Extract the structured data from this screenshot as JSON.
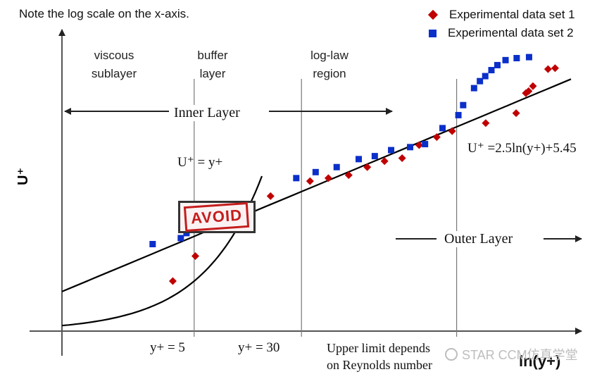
{
  "note": "Note the log scale on the x-axis.",
  "chart_data": {
    "type": "scatter",
    "xlabel": "ln(y+)",
    "ylabel": "U⁺",
    "x_scale": "log",
    "xlim": [
      0.55,
      3000
    ],
    "ylim": [
      0,
      31
    ],
    "legend_position": "top-right",
    "series": [
      {
        "name": "Experimental data set 1",
        "marker": "diamond",
        "color": "#c00000",
        "x": [
          3.5,
          5.1,
          17.9,
          34.6,
          47,
          66,
          90,
          120,
          161,
          214,
          287,
          371,
          650,
          1080,
          1270,
          1330,
          1430,
          1840,
          2070
        ],
        "y": [
          5.0,
          7.5,
          13.5,
          15.0,
          15.3,
          15.6,
          16.4,
          17.0,
          17.3,
          18.6,
          19.4,
          20.0,
          20.8,
          21.8,
          23.8,
          24.0,
          24.5,
          26.2,
          26.3
        ]
      },
      {
        "name": "Experimental data set 2",
        "marker": "square",
        "color": "#0b2fc9",
        "x": [
          2.5,
          4.0,
          4.4,
          27.5,
          38,
          54,
          78,
          102,
          134,
          184,
          236,
          316,
          412,
          446,
          535,
          590,
          645,
          715,
          790,
          905,
          1090,
          1340
        ],
        "y": [
          8.7,
          9.3,
          9.8,
          15.3,
          15.9,
          16.4,
          17.2,
          17.5,
          18.1,
          18.4,
          18.7,
          20.3,
          21.6,
          22.6,
          24.3,
          25.0,
          25.5,
          26.1,
          26.6,
          27.1,
          27.3,
          27.4
        ]
      }
    ],
    "curves": [
      {
        "label": "U⁺ = y+",
        "kind": "linear",
        "intercept": 0,
        "slope": 1
      },
      {
        "label": "U⁺ =2.5ln(y+)+5.45",
        "kind": "log_law",
        "A": 2.5,
        "B": 5.45
      }
    ],
    "x_ticks": [
      {
        "value": 5,
        "label": "y+ = 5"
      },
      {
        "value": 30,
        "label": "y+ = 30"
      }
    ],
    "upper_limit_label": [
      "Upper limit depends",
      "on Reynolds number"
    ],
    "upper_limit_x": 400,
    "regions": [
      {
        "label": [
          "viscous",
          "sublayer"
        ]
      },
      {
        "label": [
          "buffer",
          "layer"
        ]
      },
      {
        "label": [
          "log-law",
          "region"
        ]
      }
    ],
    "inner_layer_label": "Inner Layer",
    "outer_layer_label": "Outer Layer",
    "stamp_text": "AVOID",
    "watermark_text": "STAR CCM仿真学堂"
  }
}
